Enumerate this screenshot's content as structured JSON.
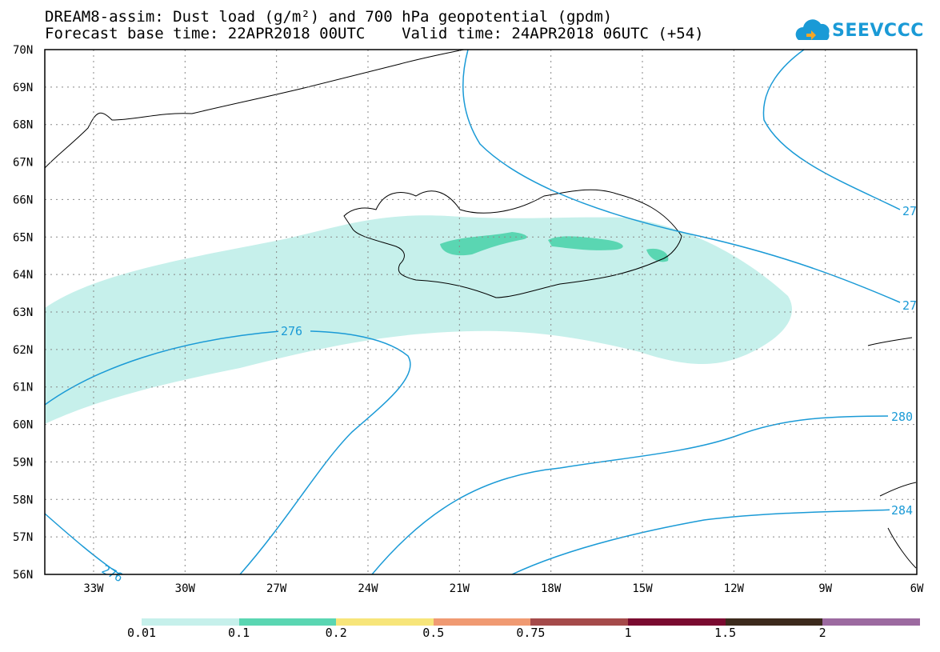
{
  "header": {
    "line1": "DREAM8-assim: Dust load (g/m²) and 700 hPa geopotential (gpdm)",
    "line2": "Forecast base time: 22APR2018 00UTC    Valid time: 24APR2018 06UTC (+54)"
  },
  "logo": {
    "text": "SEEVCCC",
    "icon": "cloud-icon",
    "color": "#1a9ad6"
  },
  "axes": {
    "lat_labels": [
      "70N",
      "69N",
      "68N",
      "67N",
      "66N",
      "65N",
      "64N",
      "63N",
      "62N",
      "61N",
      "60N",
      "59N",
      "58N",
      "57N",
      "56N"
    ],
    "lon_labels": [
      "33W",
      "30W",
      "27W",
      "24W",
      "21W",
      "18W",
      "15W",
      "12W",
      "9W",
      "6W"
    ],
    "lat_range": [
      56,
      70
    ],
    "lon_range": [
      -34.6,
      -6
    ]
  },
  "contours": {
    "color": "#1a9ad6",
    "labels": [
      "276",
      "276",
      "280",
      "284",
      "27",
      "27"
    ]
  },
  "colorbar": {
    "colors": [
      "#c6f0eb",
      "#5ad6b2",
      "#f7e57a",
      "#f09a72",
      "#a54a4a",
      "#7a0a30",
      "#3c2a1c",
      "#9c6aa0"
    ],
    "labels": [
      "0.01",
      "0.1",
      "0.2",
      "0.5",
      "0.75",
      "1",
      "1.5",
      "2"
    ]
  }
}
